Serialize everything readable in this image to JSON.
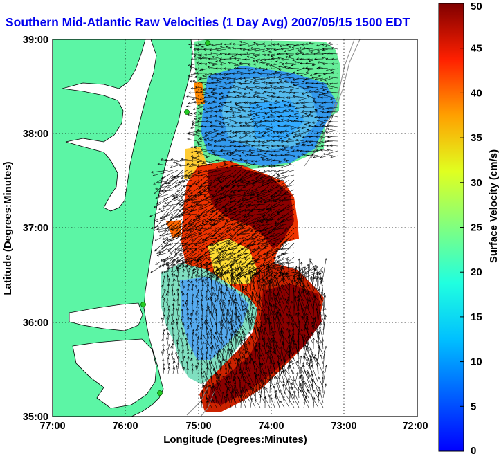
{
  "title": "Southern Mid-Atlantic Raw Velocities (1 Day Avg) 2007/05/15 1500 EDT",
  "axes": {
    "xlabel": "Longitude (Degrees:Minutes)",
    "ylabel": "Latitude (Degrees:Minutes)",
    "xticks": [
      "77:00",
      "76:00",
      "75:00",
      "74:00",
      "73:00",
      "72:00"
    ],
    "yticks": [
      "39:00",
      "38:00",
      "37:00",
      "36:00",
      "35:00"
    ],
    "xlim": [
      -77,
      -72
    ],
    "ylim": [
      35,
      39
    ],
    "grid": true
  },
  "colorbar": {
    "label": "Surface Velocity (cm/s)",
    "min": 0,
    "max": 50,
    "ticks": [
      "50",
      "45",
      "40",
      "35",
      "30",
      "25",
      "20",
      "15",
      "10",
      "5",
      "0"
    ],
    "colormap": "jet"
  },
  "colors": {
    "land": "#5cf5a5",
    "water": "#ffffff",
    "title": "#0000ee",
    "station": "#22cc22"
  }
}
